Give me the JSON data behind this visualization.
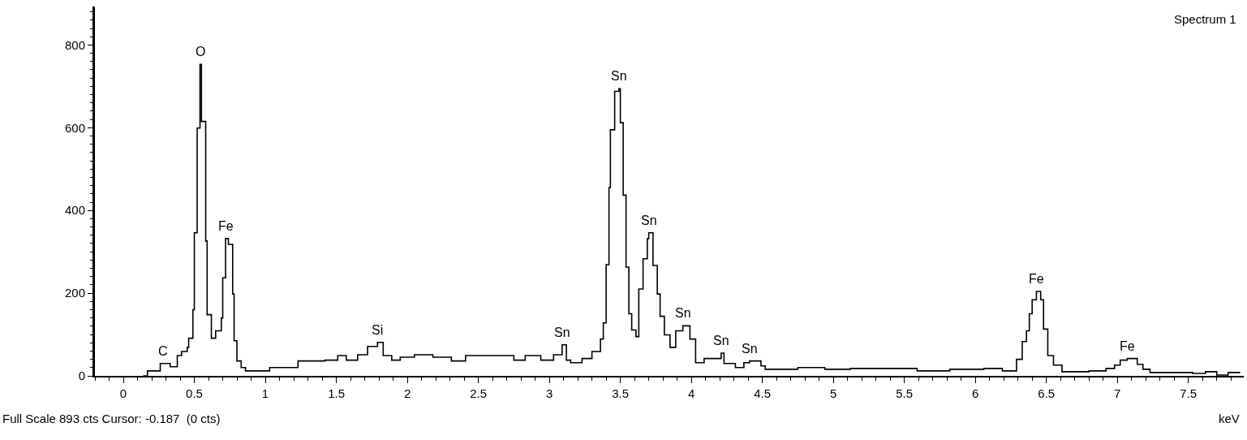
{
  "chart_data": {
    "type": "step",
    "xlabel": "keV",
    "x": [
      0.14,
      0.17,
      0.26,
      0.33,
      0.38,
      0.41,
      0.45,
      0.46,
      0.49,
      0.5,
      0.52,
      0.54,
      0.55,
      0.58,
      0.59,
      0.62,
      0.65,
      0.69,
      0.7,
      0.72,
      0.74,
      0.77,
      0.78,
      0.8,
      0.83,
      0.86,
      1.03,
      1.23,
      1.42,
      1.51,
      1.57,
      1.65,
      1.72,
      1.79,
      1.83,
      1.89,
      1.95,
      2.05,
      2.18,
      2.31,
      2.41,
      2.56,
      2.75,
      2.83,
      2.94,
      3.03,
      3.09,
      3.12,
      3.15,
      3.23,
      3.3,
      3.36,
      3.38,
      3.4,
      3.42,
      3.43,
      3.46,
      3.49,
      3.5,
      3.52,
      3.54,
      3.56,
      3.58,
      3.61,
      3.63,
      3.66,
      3.69,
      3.7,
      3.73,
      3.76,
      3.78,
      3.81,
      3.85,
      3.89,
      3.94,
      3.99,
      4.03,
      4.09,
      4.21,
      4.23,
      4.31,
      4.37,
      4.41,
      4.49,
      4.52,
      4.75,
      4.94,
      5.12,
      5.51,
      5.59,
      5.82,
      6.06,
      6.19,
      6.29,
      6.33,
      6.36,
      6.38,
      6.4,
      6.43,
      6.46,
      6.48,
      6.51,
      6.55,
      6.61,
      6.8,
      6.92,
      6.98,
      7.02,
      7.07,
      7.14,
      7.18,
      7.23,
      7.53,
      7.62,
      7.7,
      7.78,
      7.86
    ],
    "series": [
      {
        "color": "#000000",
        "values": [
          0,
          12,
          30,
          22,
          49,
          59,
          69,
          91,
          160,
          346,
          599,
          753,
          615,
          326,
          148,
          91,
          109,
          140,
          237,
          332,
          318,
          198,
          85,
          36,
          20,
          12,
          20,
          36,
          38,
          49,
          38,
          51,
          71,
          81,
          49,
          38,
          45,
          51,
          45,
          36,
          49,
          49,
          38,
          49,
          38,
          51,
          75,
          38,
          32,
          42,
          59,
          89,
          128,
          269,
          455,
          595,
          688,
          694,
          612,
          437,
          263,
          150,
          111,
          95,
          210,
          283,
          332,
          346,
          267,
          198,
          144,
          99,
          69,
          109,
          121,
          89,
          32,
          42,
          55,
          30,
          20,
          32,
          36,
          24,
          16,
          20,
          16,
          18,
          18,
          12,
          16,
          18,
          12,
          40,
          83,
          109,
          150,
          184,
          204,
          184,
          113,
          49,
          26,
          10,
          12,
          18,
          26,
          38,
          42,
          28,
          16,
          8,
          6,
          10,
          2,
          8,
          10
        ]
      }
    ],
    "xlim": [
      -0.2,
      7.89
    ],
    "ylim": [
      0,
      893
    ],
    "xticks": [
      0,
      {
        "value": 0.5,
        "label": "0.5"
      },
      1,
      {
        "value": 1.5,
        "label": "1.5"
      },
      2,
      {
        "value": 2.5,
        "label": "2.5"
      },
      3,
      {
        "value": 3.5,
        "label": "3.5"
      },
      4,
      {
        "value": 4.5,
        "label": "4.5"
      },
      5,
      {
        "value": 5.5,
        "label": "5.5"
      },
      6,
      {
        "value": 6.5,
        "label": "6.5"
      },
      7,
      {
        "value": 7.5,
        "label": "7.5"
      }
    ],
    "yticks": [
      0,
      200,
      400,
      600,
      800
    ],
    "annotations": [
      {
        "text": "C",
        "x": 0.28,
        "y": 30
      },
      {
        "text": "O",
        "x": 0.54,
        "y": 753
      },
      {
        "text": "Fe",
        "x": 0.72,
        "y": 332
      },
      {
        "text": "Si",
        "x": 1.79,
        "y": 81
      },
      {
        "text": "Sn",
        "x": 3.09,
        "y": 75
      },
      {
        "text": "Sn",
        "x": 3.49,
        "y": 694
      },
      {
        "text": "Sn",
        "x": 3.7,
        "y": 346
      },
      {
        "text": "Sn",
        "x": 3.94,
        "y": 121
      },
      {
        "text": "Sn",
        "x": 4.21,
        "y": 55
      },
      {
        "text": "Sn",
        "x": 4.41,
        "y": 36
      },
      {
        "text": "Fe",
        "x": 6.43,
        "y": 204
      },
      {
        "text": "Fe",
        "x": 7.07,
        "y": 42
      },
      "Spectrum 1",
      "Full Scale 893 cts Cursor: -0.187  (0 cts)"
    ]
  }
}
